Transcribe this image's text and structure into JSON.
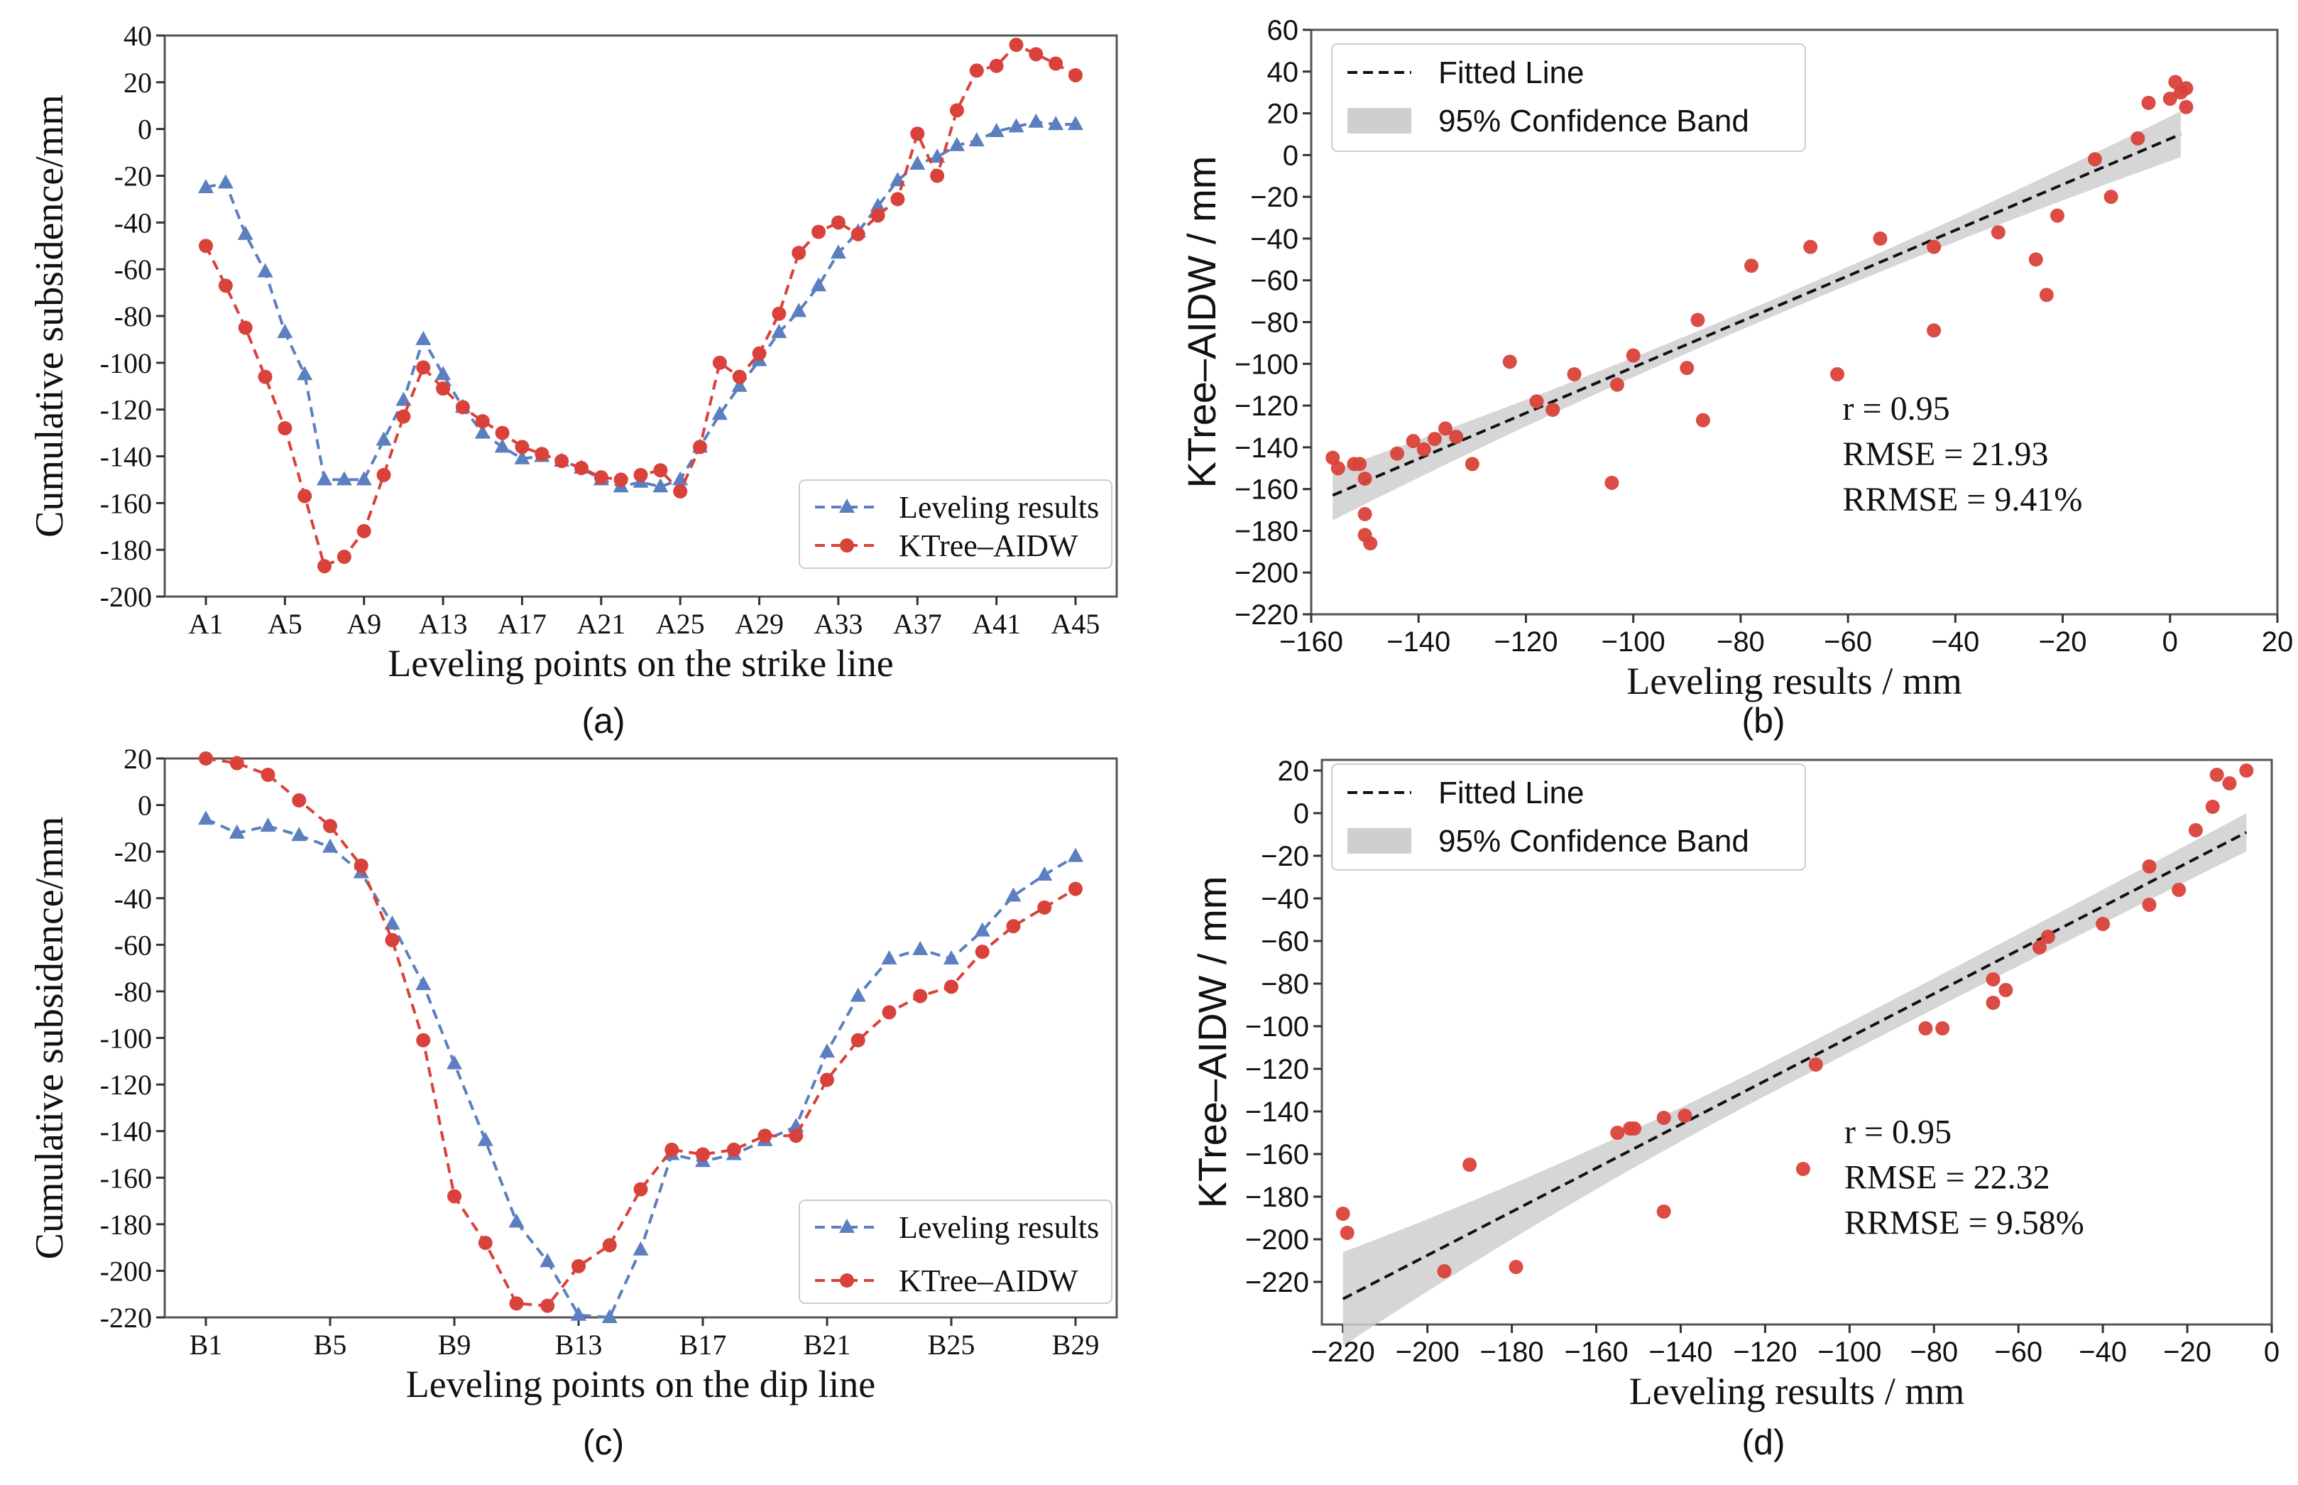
{
  "figure": {
    "panels": [
      "(a)",
      "(b)",
      "(c)",
      "(d)"
    ]
  },
  "chart_data": [
    {
      "panel": "(a)",
      "type": "line",
      "xlabel": "Leveling points on the strike line",
      "ylabel": "Cumulative subsidence/mm",
      "ylim": [
        -200,
        40
      ],
      "yticks": [
        40,
        20,
        0,
        -20,
        -40,
        -60,
        -80,
        -100,
        -120,
        -140,
        -160,
        -180,
        -200
      ],
      "categories": [
        "A1",
        "A2",
        "A3",
        "A4",
        "A5",
        "A6",
        "A7",
        "A8",
        "A9",
        "A10",
        "A11",
        "A12",
        "A13",
        "A14",
        "A15",
        "A16",
        "A17",
        "A18",
        "A19",
        "A20",
        "A21",
        "A22",
        "A23",
        "A24",
        "A25",
        "A26",
        "A27",
        "A28",
        "A29",
        "A30",
        "A31",
        "A32",
        "A33",
        "A34",
        "A35",
        "A36",
        "A37",
        "A38",
        "A39",
        "A40",
        "A41",
        "A42",
        "A43",
        "A44",
        "A45"
      ],
      "xtick_labels": [
        "A1",
        "A5",
        "A9",
        "A13",
        "A17",
        "A21",
        "A25",
        "A29",
        "A33",
        "A37",
        "A41",
        "A45"
      ],
      "legend": "bottom-right",
      "series": [
        {
          "name": "Leveling results",
          "color": "#5b7fc0",
          "marker": "triangle",
          "values": [
            -25,
            -23,
            -45,
            -61,
            -87,
            -105,
            -150,
            -150,
            -150,
            -133,
            -116,
            -90,
            -105,
            -119,
            -130,
            -136,
            -141,
            -140,
            -142,
            -145,
            -150,
            -153,
            -151,
            -153,
            -150,
            -136,
            -122,
            -110,
            -99,
            -87,
            -78,
            -67,
            -53,
            -44,
            -33,
            -22,
            -15,
            -12,
            -7,
            -5,
            -1,
            1,
            3,
            2,
            2
          ]
        },
        {
          "name": "KTree–AIDW",
          "color": "#d9423a",
          "marker": "circle",
          "values": [
            -50,
            -67,
            -85,
            -106,
            -128,
            -157,
            -187,
            -183,
            -172,
            -148,
            -123,
            -102,
            -111,
            -119,
            -125,
            -130,
            -136,
            -139,
            -142,
            -145,
            -149,
            -150,
            -148,
            -146,
            -155,
            -136,
            -100,
            -106,
            -96,
            -79,
            -53,
            -44,
            -40,
            -45,
            -37,
            -30,
            -2,
            -20,
            8,
            25,
            27,
            36,
            32,
            28,
            23
          ]
        }
      ]
    },
    {
      "panel": "(b)",
      "type": "scatter",
      "xlabel": "Leveling results / mm",
      "ylabel": "KTree–AIDW / mm",
      "xlim": [
        -160,
        20
      ],
      "ylim": [
        -220,
        60
      ],
      "xticks": [
        -160,
        -140,
        -120,
        -100,
        -80,
        -60,
        -40,
        -20,
        0,
        20
      ],
      "yticks": [
        60,
        40,
        20,
        0,
        -20,
        -40,
        -60,
        -80,
        -100,
        -120,
        -140,
        -160,
        -180,
        -200,
        -220
      ],
      "legend": "top-left",
      "legend_items": [
        "Fitted Line",
        "95% Confidence Band"
      ],
      "fit": {
        "x": [
          -156,
          2
        ],
        "y": [
          -163,
          10
        ]
      },
      "band_halfwidth": [
        12,
        4,
        11
      ],
      "stats": [
        "r = 0.95",
        "RMSE = 21.93",
        "RRMSE = 9.41%"
      ],
      "points": {
        "x": [
          -156,
          -155,
          -152,
          -151,
          -150,
          -150,
          -149,
          -150,
          -144,
          -141,
          -139,
          -137,
          -135,
          -133,
          -130,
          -123,
          -118,
          -115,
          -111,
          -103,
          -100,
          -104,
          -90,
          -88,
          -87,
          -78,
          -67,
          -62,
          -54,
          -44,
          -44,
          -32,
          -25,
          -23,
          -21,
          -14,
          -11,
          -6,
          -4,
          0,
          1,
          2,
          3,
          3
        ],
        "y": [
          -145,
          -150,
          -148,
          -148,
          -172,
          -182,
          -186,
          -155,
          -143,
          -137,
          -141,
          -136,
          -131,
          -135,
          -148,
          -99,
          -118,
          -122,
          -105,
          -110,
          -96,
          -157,
          -102,
          -79,
          -127,
          -53,
          -44,
          -105,
          -40,
          -44,
          -84,
          -37,
          -50,
          -67,
          -29,
          -2,
          -20,
          8,
          25,
          27,
          35,
          30,
          23,
          32
        ]
      }
    },
    {
      "panel": "(c)",
      "type": "line",
      "xlabel": "Leveling points on the dip line",
      "ylabel": "Cumulative subsidence/mm",
      "ylim": [
        -220,
        20
      ],
      "yticks": [
        20,
        0,
        -20,
        -40,
        -60,
        -80,
        -100,
        -120,
        -140,
        -160,
        -180,
        -200,
        -220
      ],
      "categories": [
        "B1",
        "B2",
        "B3",
        "B4",
        "B5",
        "B6",
        "B7",
        "B8",
        "B9",
        "B10",
        "B11",
        "B12",
        "B13",
        "B14",
        "B15",
        "B16",
        "B17",
        "B18",
        "B19",
        "B20",
        "B21",
        "B22",
        "B23",
        "B24",
        "B25",
        "B26",
        "B27",
        "B28",
        "B29"
      ],
      "xtick_labels": [
        "B1",
        "B5",
        "B9",
        "B13",
        "B17",
        "B21",
        "B25",
        "B29"
      ],
      "legend": "bottom-right",
      "series": [
        {
          "name": "Leveling results",
          "color": "#5b7fc0",
          "marker": "triangle",
          "values": [
            -6,
            -12,
            -9,
            -13,
            -18,
            -29,
            -51,
            -77,
            -111,
            -144,
            -179,
            -196,
            -219,
            -220,
            -191,
            -150,
            -153,
            -150,
            -144,
            -138,
            -106,
            -82,
            -66,
            -62,
            -66,
            -54,
            -39,
            -30,
            -22
          ]
        },
        {
          "name": "KTree–AIDW",
          "color": "#d9423a",
          "marker": "circle",
          "values": [
            20,
            18,
            13,
            2,
            -9,
            -26,
            -58,
            -101,
            -168,
            -188,
            -214,
            -215,
            -198,
            -189,
            -165,
            -148,
            -150,
            -148,
            -142,
            -142,
            -118,
            -101,
            -89,
            -82,
            -78,
            -63,
            -52,
            -44,
            -36
          ]
        }
      ]
    },
    {
      "panel": "(d)",
      "type": "scatter",
      "xlabel": "Leveling results / mm",
      "ylabel": "KTree–AIDW / mm",
      "xlim": [
        -225,
        0
      ],
      "ylim": [
        -240,
        25
      ],
      "xticks": [
        -220,
        -200,
        -180,
        -160,
        -140,
        -120,
        -100,
        -80,
        -60,
        -40,
        -20,
        0
      ],
      "yticks": [
        20,
        0,
        -20,
        -40,
        -60,
        -80,
        -100,
        -120,
        -140,
        -160,
        -180,
        -200,
        -220
      ],
      "legend": "top-left",
      "legend_items": [
        "Fitted Line",
        "95% Confidence Band"
      ],
      "fit": {
        "x": [
          -220,
          -6
        ],
        "y": [
          -228,
          -9
        ]
      },
      "band_halfwidth": [
        22,
        7,
        9
      ],
      "stats": [
        "r = 0.95",
        "RMSE = 22.32",
        "RRMSE = 9.58%"
      ],
      "points": {
        "x": [
          -220,
          -219,
          -196,
          -190,
          -179,
          -155,
          -152,
          -151,
          -144,
          -144,
          -139,
          -108,
          -111,
          -82,
          -78,
          -66,
          -66,
          -63,
          -55,
          -53,
          -40,
          -29,
          -29,
          -22,
          -18,
          -14,
          -13,
          -10,
          -6
        ],
        "y": [
          -188,
          -197,
          -215,
          -165,
          -213,
          -150,
          -148,
          -148,
          -143,
          -187,
          -142,
          -118,
          -167,
          -101,
          -101,
          -78,
          -89,
          -83,
          -63,
          -58,
          -52,
          -43,
          -25,
          -36,
          -8,
          3,
          18,
          14,
          20
        ]
      }
    }
  ]
}
